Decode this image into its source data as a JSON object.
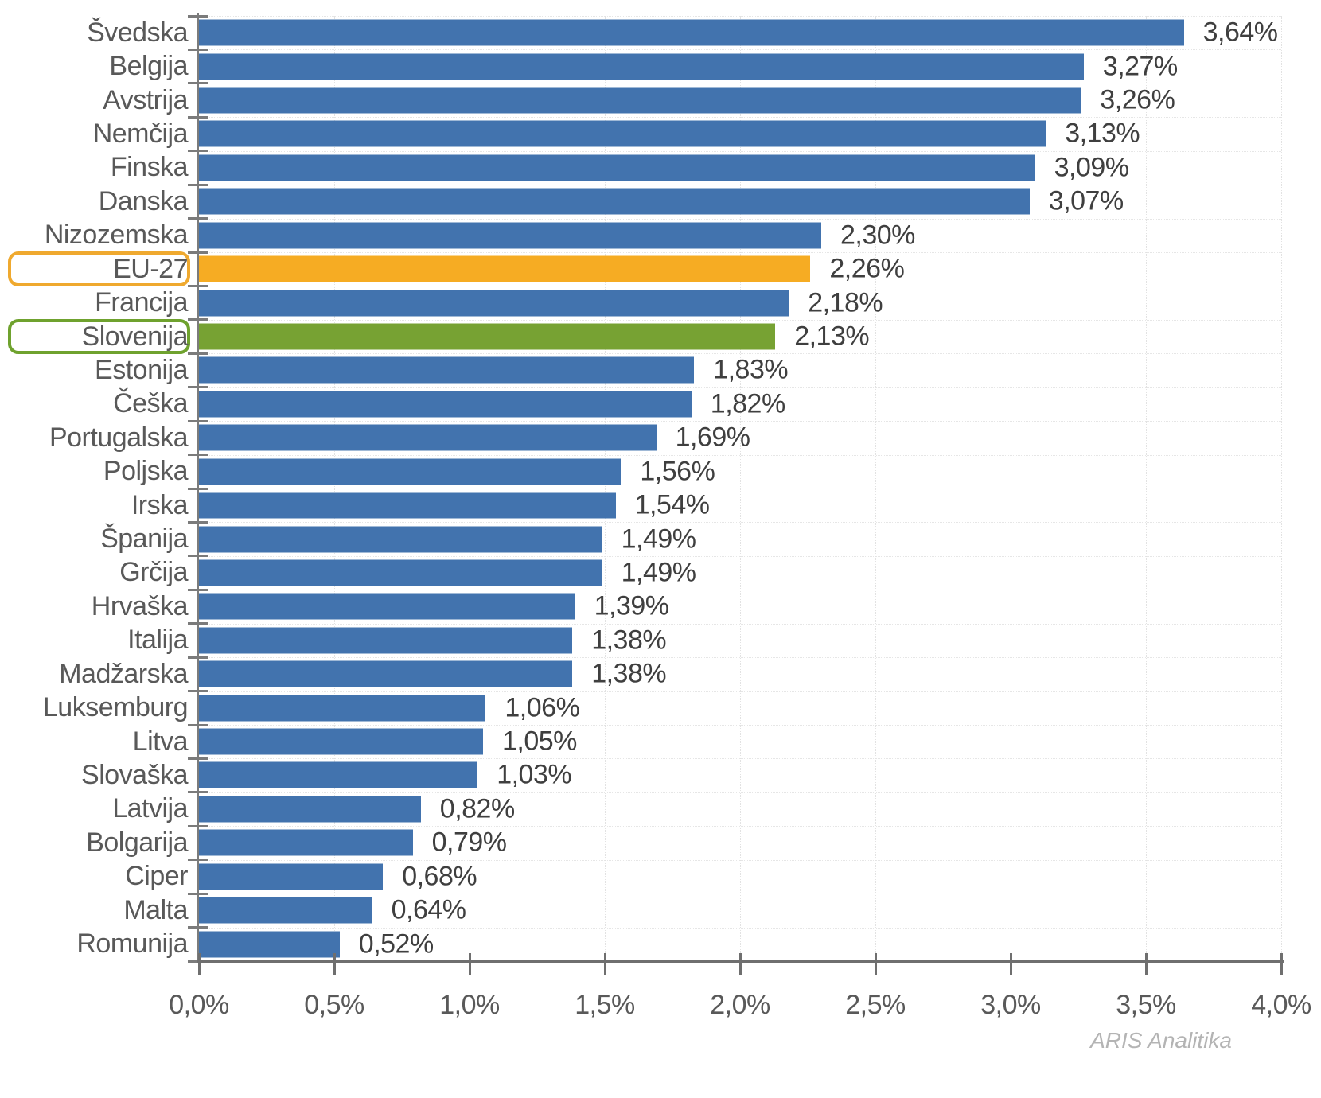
{
  "watermark": {
    "text": "ARIS Analitika"
  },
  "colors": {
    "blue": "#4273AE",
    "orange": "#F6AC23",
    "green": "#77A233",
    "orange_border": "#EFA92F",
    "green_border": "#6FA22E",
    "axis": "#6F6F6F",
    "category_text": "#595959",
    "value_text": "#3F3F3F",
    "grid": "#E4E4E4",
    "watermark_text": "#B4B4B4"
  },
  "chart_data": {
    "type": "bar",
    "orientation": "horizontal",
    "title": "",
    "xlabel": "",
    "ylabel": "",
    "xlim": [
      0,
      4.0
    ],
    "grid": true,
    "xtick_values": [
      0,
      0.5,
      1.0,
      1.5,
      2.0,
      2.5,
      3.0,
      3.5,
      4.0
    ],
    "xtick_labels": [
      "0,0%",
      "0,5%",
      "1,0%",
      "1,5%",
      "2,0%",
      "2,5%",
      "3,0%",
      "3,5%",
      "4,0%"
    ],
    "bars": [
      {
        "category": "Švedska",
        "value": 3.64,
        "label": "3,64%",
        "color_key": "blue",
        "boxed": false
      },
      {
        "category": "Belgija",
        "value": 3.27,
        "label": "3,27%",
        "color_key": "blue",
        "boxed": false
      },
      {
        "category": "Avstrija",
        "value": 3.26,
        "label": "3,26%",
        "color_key": "blue",
        "boxed": false
      },
      {
        "category": "Nemčija",
        "value": 3.13,
        "label": "3,13%",
        "color_key": "blue",
        "boxed": false
      },
      {
        "category": "Finska",
        "value": 3.09,
        "label": "3,09%",
        "color_key": "blue",
        "boxed": false
      },
      {
        "category": "Danska",
        "value": 3.07,
        "label": "3,07%",
        "color_key": "blue",
        "boxed": false
      },
      {
        "category": "Nizozemska",
        "value": 2.3,
        "label": "2,30%",
        "color_key": "blue",
        "boxed": false
      },
      {
        "category": "EU-27",
        "value": 2.26,
        "label": "2,26%",
        "color_key": "orange",
        "boxed": true,
        "box_color_key": "orange_border"
      },
      {
        "category": "Francija",
        "value": 2.18,
        "label": "2,18%",
        "color_key": "blue",
        "boxed": false
      },
      {
        "category": "Slovenija",
        "value": 2.13,
        "label": "2,13%",
        "color_key": "green",
        "boxed": true,
        "box_color_key": "green_border"
      },
      {
        "category": "Estonija",
        "value": 1.83,
        "label": "1,83%",
        "color_key": "blue",
        "boxed": false
      },
      {
        "category": "Češka",
        "value": 1.82,
        "label": "1,82%",
        "color_key": "blue",
        "boxed": false
      },
      {
        "category": "Portugalska",
        "value": 1.69,
        "label": "1,69%",
        "color_key": "blue",
        "boxed": false
      },
      {
        "category": "Poljska",
        "value": 1.56,
        "label": "1,56%",
        "color_key": "blue",
        "boxed": false
      },
      {
        "category": "Irska",
        "value": 1.54,
        "label": "1,54%",
        "color_key": "blue",
        "boxed": false
      },
      {
        "category": "Španija",
        "value": 1.49,
        "label": "1,49%",
        "color_key": "blue",
        "boxed": false
      },
      {
        "category": "Grčija",
        "value": 1.49,
        "label": "1,49%",
        "color_key": "blue",
        "boxed": false
      },
      {
        "category": "Hrvaška",
        "value": 1.39,
        "label": "1,39%",
        "color_key": "blue",
        "boxed": false
      },
      {
        "category": "Italija",
        "value": 1.38,
        "label": "1,38%",
        "color_key": "blue",
        "boxed": false
      },
      {
        "category": "Madžarska",
        "value": 1.38,
        "label": "1,38%",
        "color_key": "blue",
        "boxed": false
      },
      {
        "category": "Luksemburg",
        "value": 1.06,
        "label": "1,06%",
        "color_key": "blue",
        "boxed": false
      },
      {
        "category": "Litva",
        "value": 1.05,
        "label": "1,05%",
        "color_key": "blue",
        "boxed": false
      },
      {
        "category": "Slovaška",
        "value": 1.03,
        "label": "1,03%",
        "color_key": "blue",
        "boxed": false
      },
      {
        "category": "Latvija",
        "value": 0.82,
        "label": "0,82%",
        "color_key": "blue",
        "boxed": false
      },
      {
        "category": "Bolgarija",
        "value": 0.79,
        "label": "0,79%",
        "color_key": "blue",
        "boxed": false
      },
      {
        "category": "Ciper",
        "value": 0.68,
        "label": "0,68%",
        "color_key": "blue",
        "boxed": false
      },
      {
        "category": "Malta",
        "value": 0.64,
        "label": "0,64%",
        "color_key": "blue",
        "boxed": false
      },
      {
        "category": "Romunija",
        "value": 0.52,
        "label": "0,52%",
        "color_key": "blue",
        "boxed": false
      }
    ]
  }
}
